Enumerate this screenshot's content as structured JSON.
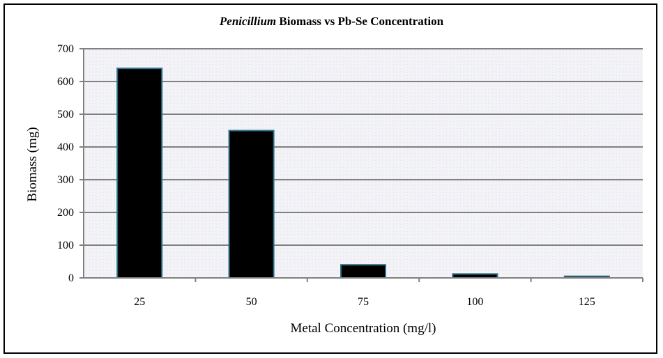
{
  "chart_data": {
    "type": "bar",
    "title_italic": "Penicillium",
    "title_rest": " Biomass vs Pb-Se Concentration",
    "xlabel": "Metal Concentration (mg/l)",
    "ylabel": "Biomass (mg)",
    "categories": [
      "25",
      "50",
      "75",
      "100",
      "125"
    ],
    "values": [
      640,
      450,
      40,
      12,
      5
    ],
    "ylim": [
      0,
      700
    ],
    "yticks": [
      0,
      100,
      200,
      300,
      400,
      500,
      600,
      700
    ],
    "grid": true,
    "legend": "none",
    "bar_color": "#000000",
    "bar_edge_color": "#2e6e86"
  }
}
